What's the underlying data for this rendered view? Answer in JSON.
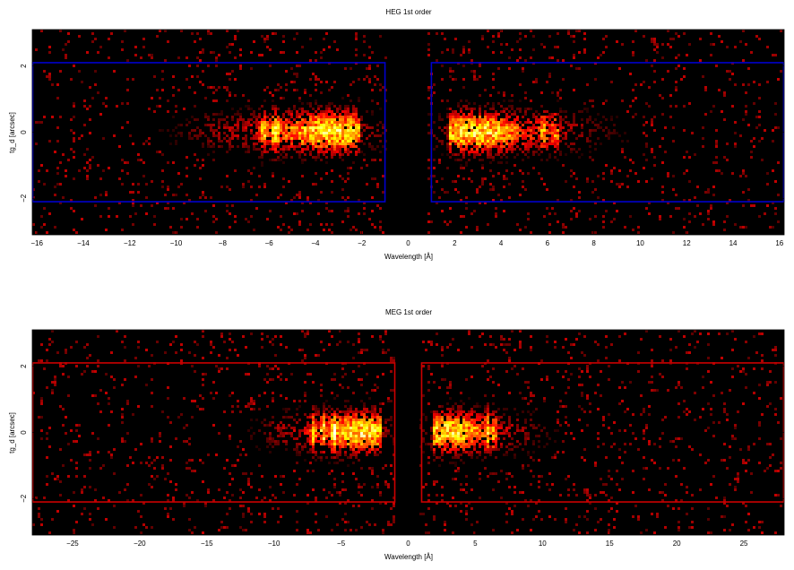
{
  "chart_data": [
    {
      "type": "heatmap",
      "title": "HEG 1st order",
      "xlabel": "Wavelength [Å]",
      "ylabel": "tg_d [arcsec]",
      "xlim": [
        -16.2,
        16.2
      ],
      "ylim": [
        -3.1,
        3.1
      ],
      "x_ticks": [
        -16,
        -14,
        -12,
        -10,
        -8,
        -6,
        -4,
        -2,
        0,
        2,
        4,
        6,
        8,
        10,
        12,
        14,
        16
      ],
      "y_ticks": [
        -2,
        0,
        2
      ],
      "colormap": "black-red-yellow-white (hot)",
      "region_color": "#0000cc",
      "regions": [
        {
          "x": [
            -16.2,
            -1.0
          ],
          "y": [
            -2.1,
            2.1
          ]
        },
        {
          "x": [
            1.0,
            16.2
          ],
          "y": [
            -2.1,
            2.1
          ]
        }
      ],
      "bright_features": {
        "negative_order": {
          "x_range": [
            -8.5,
            -2.0
          ],
          "peak_x": -3.2,
          "lines_x": [
            -6.2,
            -5.7
          ]
        },
        "positive_order": {
          "x_range": [
            1.8,
            7.5
          ],
          "peak_x": 3.0,
          "lines_x": [
            5.9,
            6.4
          ]
        }
      }
    },
    {
      "type": "heatmap",
      "title": "MEG 1st order",
      "xlabel": "Wavelength [Å]",
      "ylabel": "tg_d [arcsec]",
      "xlim": [
        -28,
        28
      ],
      "ylim": [
        -3.1,
        3.1
      ],
      "x_ticks": [
        -25,
        -20,
        -15,
        -10,
        -5,
        0,
        5,
        10,
        15,
        20,
        25
      ],
      "y_ticks": [
        -2,
        0,
        2
      ],
      "colormap": "black-red-yellow-white (hot)",
      "region_color": "#cc0000",
      "regions": [
        {
          "x": [
            -28,
            -1.0
          ],
          "y": [
            -2.1,
            2.1
          ]
        },
        {
          "x": [
            1.0,
            28
          ],
          "y": [
            -2.1,
            2.1
          ]
        }
      ],
      "bright_features": {
        "negative_order": {
          "x_range": [
            -10,
            -2.0
          ],
          "peak_x": -3.5,
          "lines_x": [
            -7.0,
            -6.3,
            -5.5
          ]
        },
        "positive_order": {
          "x_range": [
            2.0,
            9.0
          ],
          "peak_x": 3.2,
          "lines_x": [
            6.0,
            6.5
          ]
        }
      }
    }
  ]
}
